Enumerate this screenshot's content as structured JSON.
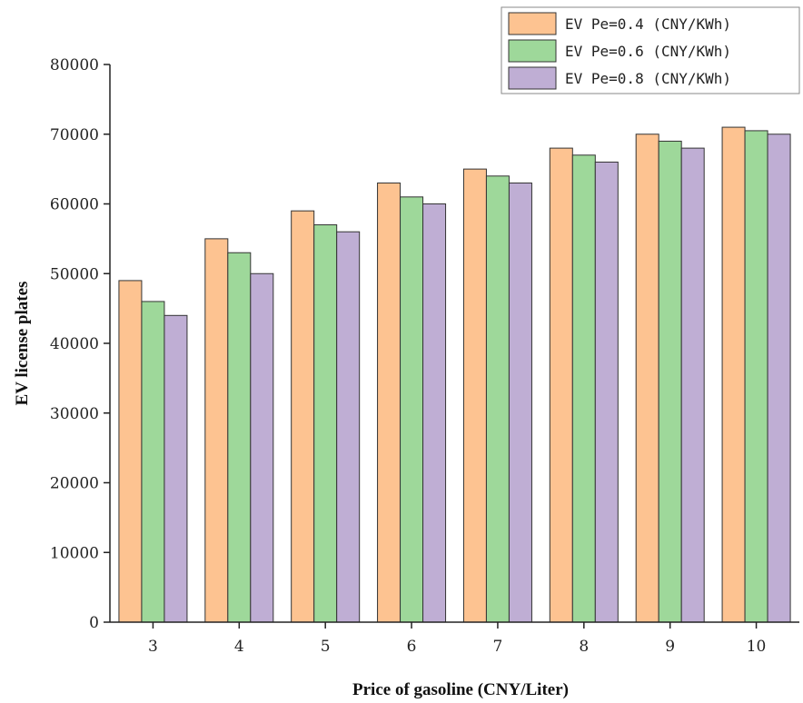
{
  "chart_data": {
    "type": "bar",
    "title": "",
    "xlabel": "Price of gasoline (CNY/Liter)",
    "ylabel": "EV license plates",
    "categories": [
      "3",
      "4",
      "5",
      "6",
      "7",
      "8",
      "9",
      "10"
    ],
    "ylim": [
      0,
      80000
    ],
    "yticks": [
      "0",
      "10000",
      "20000",
      "30000",
      "40000",
      "50000",
      "60000",
      "70000",
      "80000"
    ],
    "grid": false,
    "legend_position": "top-right",
    "series": [
      {
        "name": "EV Pe=0.4 (CNY/KWh)",
        "color": "#FDC391",
        "values": [
          49000,
          55000,
          59000,
          63000,
          65000,
          68000,
          70000,
          71000
        ]
      },
      {
        "name": "EV Pe=0.6 (CNY/KWh)",
        "color": "#9ED89A",
        "values": [
          46000,
          53000,
          57000,
          61000,
          64000,
          67000,
          69000,
          70500
        ]
      },
      {
        "name": "EV Pe=0.8 (CNY/KWh)",
        "color": "#BFAED4",
        "values": [
          44000,
          50000,
          56000,
          60000,
          63000,
          66000,
          68000,
          70000
        ]
      }
    ]
  }
}
